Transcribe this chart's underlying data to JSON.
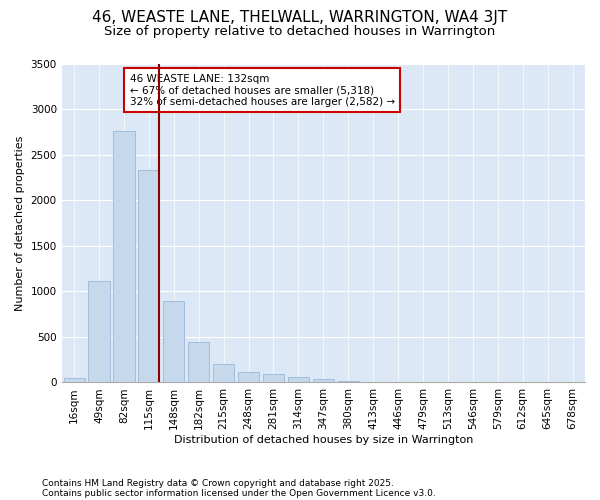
{
  "title": "46, WEASTE LANE, THELWALL, WARRINGTON, WA4 3JT",
  "subtitle": "Size of property relative to detached houses in Warrington",
  "xlabel": "Distribution of detached houses by size in Warrington",
  "ylabel": "Number of detached properties",
  "categories": [
    "16sqm",
    "49sqm",
    "82sqm",
    "115sqm",
    "148sqm",
    "182sqm",
    "215sqm",
    "248sqm",
    "281sqm",
    "314sqm",
    "347sqm",
    "380sqm",
    "413sqm",
    "446sqm",
    "479sqm",
    "513sqm",
    "546sqm",
    "579sqm",
    "612sqm",
    "645sqm",
    "678sqm"
  ],
  "values": [
    50,
    1120,
    2760,
    2340,
    900,
    450,
    200,
    110,
    90,
    60,
    35,
    20,
    10,
    5,
    2,
    1,
    1,
    0,
    0,
    0,
    0
  ],
  "bar_color": "#c6d9ec",
  "bar_edgecolor": "#9ab8d8",
  "vline_x_idx": 3,
  "vline_color": "#8b0000",
  "annotation_line1": "46 WEASTE LANE: 132sqm",
  "annotation_line2": "← 67% of detached houses are smaller (5,318)",
  "annotation_line3": "32% of semi-detached houses are larger (2,582) →",
  "annotation_box_color": "white",
  "annotation_box_edgecolor": "#cc0000",
  "ylim": [
    0,
    3500
  ],
  "yticks": [
    0,
    500,
    1000,
    1500,
    2000,
    2500,
    3000,
    3500
  ],
  "bg_color": "#dce8f5",
  "footer1": "Contains HM Land Registry data © Crown copyright and database right 2025.",
  "footer2": "Contains public sector information licensed under the Open Government Licence v3.0.",
  "title_fontsize": 11,
  "subtitle_fontsize": 9.5,
  "axis_fontsize": 8,
  "tick_fontsize": 7.5,
  "footer_fontsize": 6.5
}
